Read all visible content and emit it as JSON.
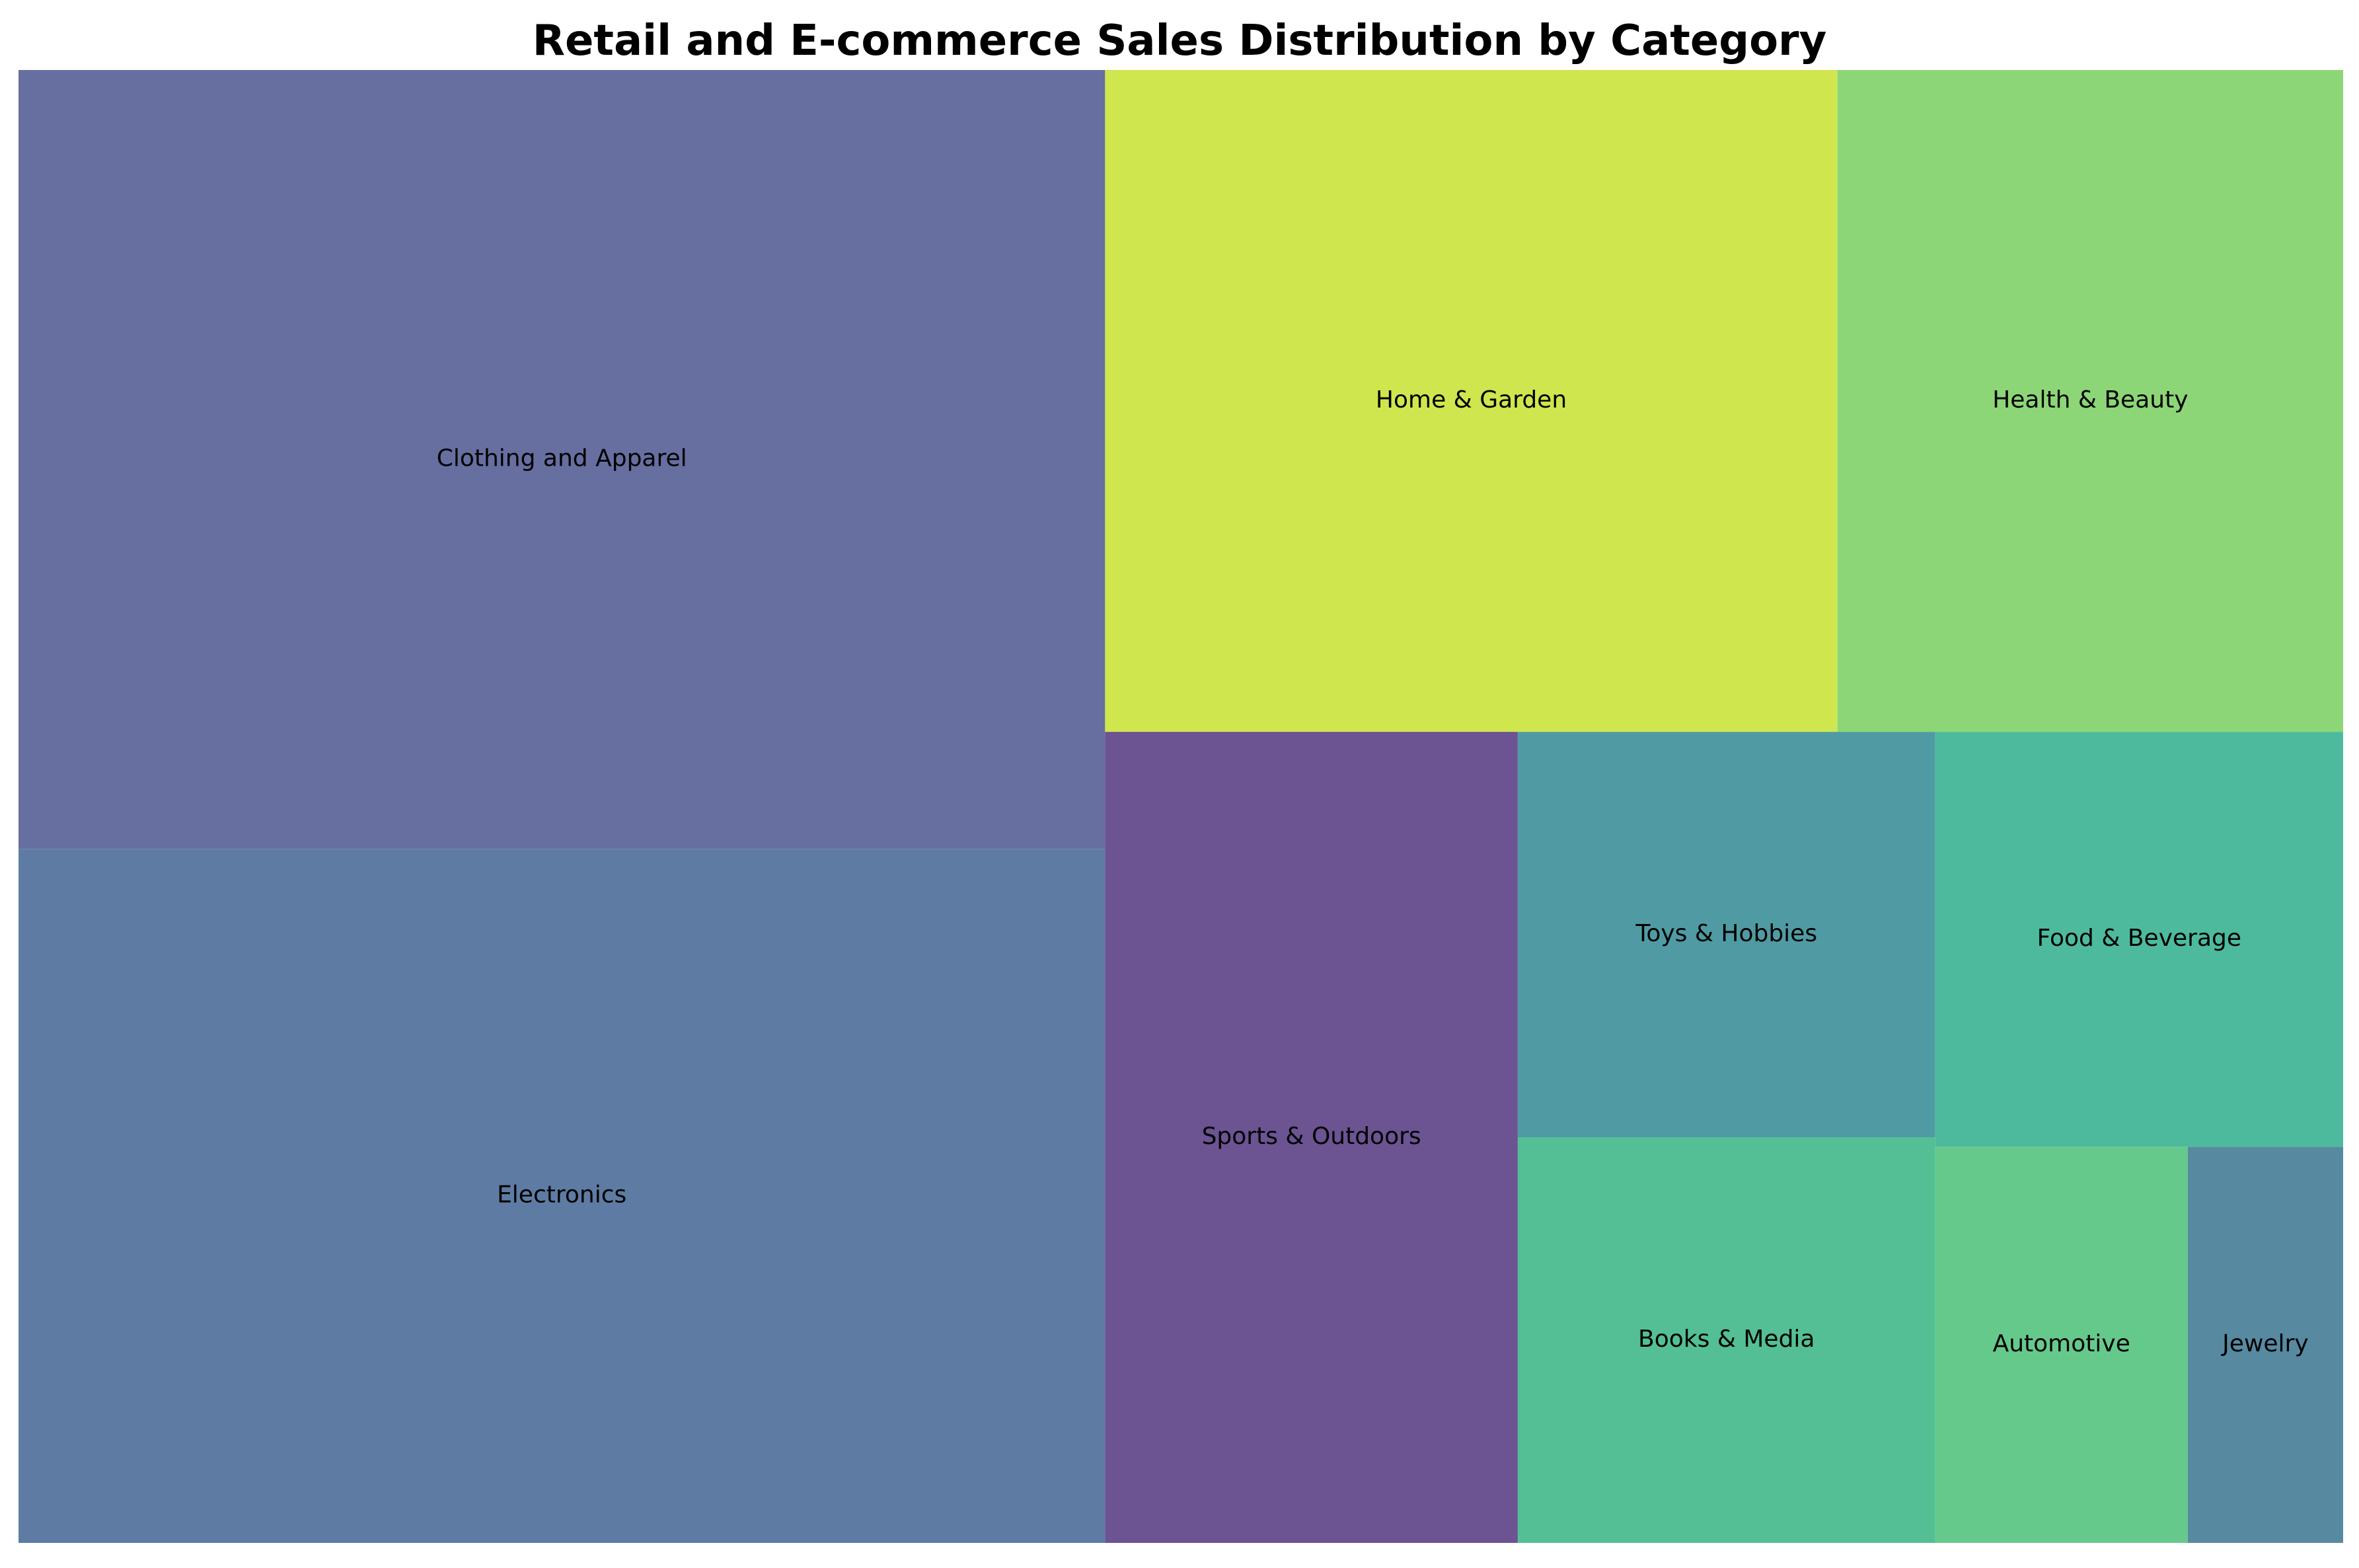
{
  "chart_data": {
    "type": "treemap",
    "title": "Retail and E-commerce Sales Distribution by Category",
    "items": [
      {
        "label": "Clothing and Apparel",
        "value": 22.0,
        "color": "#666fa0"
      },
      {
        "label": "Electronics",
        "value": 19.6,
        "color": "#5e7ca3"
      },
      {
        "label": "Home & Garden",
        "value": 12.6,
        "color": "#cfe64e"
      },
      {
        "label": "Health & Beauty",
        "value": 8.7,
        "color": "#8cd677"
      },
      {
        "label": "Sports & Outdoors",
        "value": 8.7,
        "color": "#6c5392"
      },
      {
        "label": "Toys & Hobbies",
        "value": 4.4,
        "color": "#509ba3"
      },
      {
        "label": "Books & Media",
        "value": 4.4,
        "color": "#54bf94"
      },
      {
        "label": "Food & Beverage",
        "value": 4.4,
        "color": "#4eba9d"
      },
      {
        "label": "Automotive",
        "value": 2.6,
        "color": "#66c98c"
      },
      {
        "label": "Jewelry",
        "value": 1.6,
        "color": "#578aa1"
      }
    ]
  }
}
